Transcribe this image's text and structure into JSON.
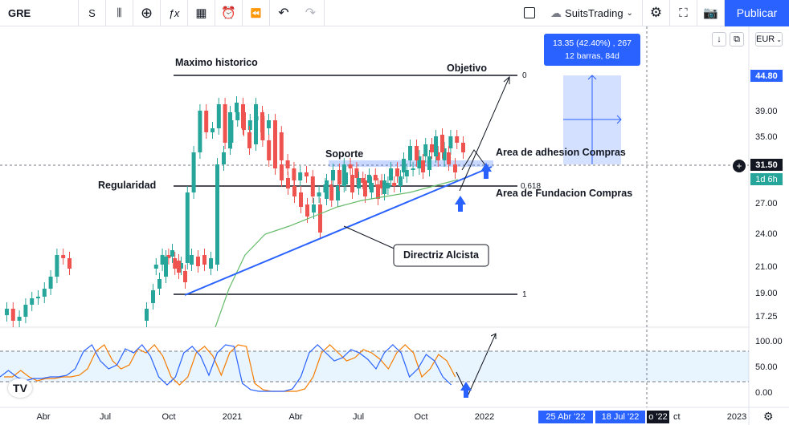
{
  "toolbar": {
    "symbol": "GRE",
    "interval": "S",
    "tools": [
      {
        "name": "candles-icon",
        "glyph": "⫼"
      },
      {
        "name": "compare-add-icon",
        "glyph": "⊕"
      },
      {
        "name": "indicators-icon",
        "glyph": "ƒx"
      },
      {
        "name": "templates-icon",
        "glyph": "▦"
      },
      {
        "name": "alert-icon",
        "glyph": "⏰"
      },
      {
        "name": "replay-icon",
        "glyph": "⏪"
      },
      {
        "name": "undo-icon",
        "glyph": "↶"
      },
      {
        "name": "redo-icon",
        "glyph": "↷"
      }
    ],
    "cloud_label": "SuitsTrading",
    "publish_label": "Publicar"
  },
  "price_axis": {
    "currency": "EUR",
    "ticks": [
      "44.80",
      "39.00",
      "35.00",
      "31.50",
      "27.00",
      "24.00",
      "21.00",
      "19.00",
      "17.25"
    ],
    "current_price": "31.50",
    "countdown": "1d 6h",
    "indicator_ticks": [
      "100.00",
      "50.00",
      "0.00"
    ]
  },
  "time_axis": {
    "ticks": [
      "Abr",
      "Jul",
      "Oct",
      "2021",
      "Abr",
      "Jul",
      "Oct",
      "2022",
      "2023"
    ],
    "range_start": "25 Abr '22",
    "range_end": "18 Jul '22",
    "partial_label": "o '22",
    "partial_label2": "ct"
  },
  "measure": {
    "line1": "13.35 (42.40%) , 267",
    "line2": "12 barras, 84d"
  },
  "annotations": {
    "max_label": "Maximo historico",
    "target_label": "Objetivo",
    "support_label": "Soporte",
    "adhesion_label": "Area de adhesion Compras",
    "regularity_label": "Regularidad",
    "foundation_label": "Area de Fundacion Compras",
    "trendline_label": "Directriz Alcista",
    "fib_0": "0",
    "fib_618": "0.618",
    "fib_1": "1"
  },
  "colors": {
    "up": "#26a69a",
    "down": "#ef5350",
    "accent": "#2962ff",
    "ma": "#66bb6a",
    "stoch_k": "#2962ff",
    "stoch_d": "#f57c00"
  },
  "logo": "TV"
}
